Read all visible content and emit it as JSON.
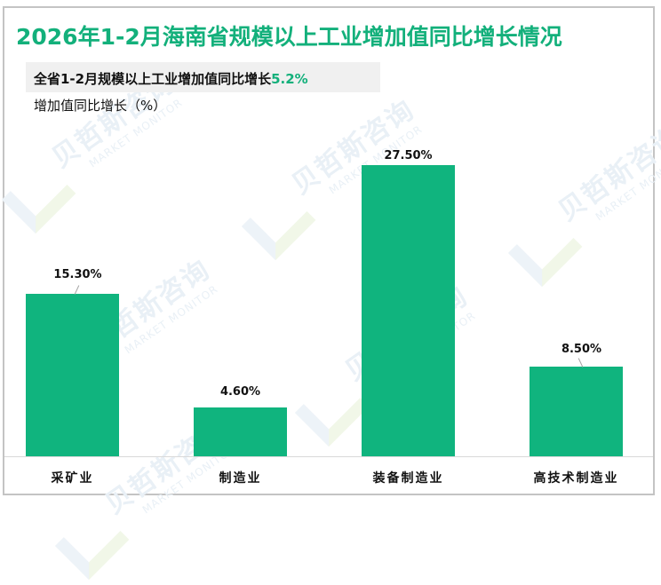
{
  "header": {
    "title": "2026年1-2月海南省规模以上工业增加值同比增长情况",
    "summary_text": "全省1-2月规模以上工业增加值同比增长",
    "summary_value": "5.2%",
    "y_axis_label": "增加值同比增长（%）"
  },
  "watermark": {
    "cn": "贝哲斯咨询",
    "en": "MARKET MONITOR"
  },
  "colors": {
    "accent": "#13b07b",
    "bar": "#10b47e",
    "summary_bg": "#f0f0f0"
  },
  "chart_data": {
    "type": "bar",
    "title": "2026年1-2月海南省规模以上工业增加值同比增长情况",
    "subtitle": "全省1-2月规模以上工业增加值同比增长5.2%",
    "xlabel": "",
    "ylabel": "增加值同比增长（%）",
    "categories": [
      "采矿业",
      "制造业",
      "装备制造业",
      "高技术制造业"
    ],
    "values": [
      15.3,
      4.6,
      27.5,
      8.5
    ],
    "data_labels": [
      "15.30%",
      "4.60%",
      "27.50%",
      "8.50%"
    ],
    "ylim": [
      0,
      30
    ],
    "grid": false,
    "legend": null
  }
}
